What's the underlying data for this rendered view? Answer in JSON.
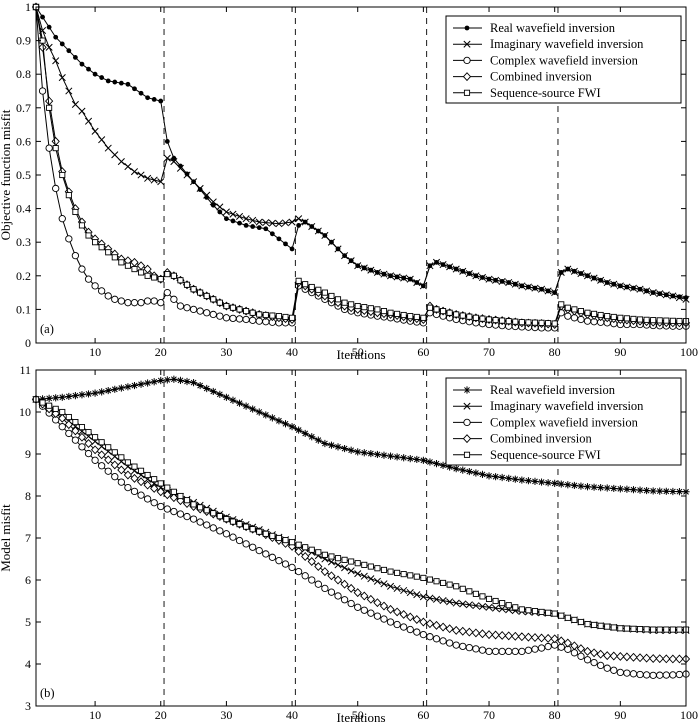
{
  "chart_data": [
    {
      "type": "line",
      "panel_label": "(a)",
      "xlabel": "Iterations",
      "ylabel": "Objective function misfit",
      "xlim": [
        1,
        100
      ],
      "ylim": [
        0,
        1
      ],
      "xticks": [
        10,
        20,
        30,
        40,
        50,
        60,
        70,
        80,
        90,
        100
      ],
      "yticks": [
        0,
        0.1,
        0.2,
        0.3,
        0.4,
        0.5,
        0.6,
        0.7,
        0.8,
        0.9,
        1
      ],
      "vlines": [
        20.5,
        40.5,
        60.5,
        80.5
      ],
      "legend_position": "top-right",
      "series": [
        {
          "name": "Real wavefield inversion",
          "marker": "dot",
          "x": [
            1,
            2,
            3,
            4,
            5,
            6,
            8,
            10,
            12,
            15,
            18,
            20,
            21,
            22,
            25,
            28,
            30,
            33,
            36,
            38,
            40,
            41,
            42,
            45,
            48,
            50,
            53,
            55,
            58,
            60,
            61,
            62,
            65,
            68,
            70,
            73,
            75,
            78,
            80,
            81,
            82,
            85,
            88,
            90,
            93,
            95,
            98,
            100
          ],
          "y": [
            1.0,
            0.97,
            0.94,
            0.91,
            0.89,
            0.87,
            0.83,
            0.8,
            0.78,
            0.77,
            0.73,
            0.72,
            0.6,
            0.55,
            0.48,
            0.41,
            0.37,
            0.35,
            0.34,
            0.31,
            0.28,
            0.35,
            0.36,
            0.32,
            0.26,
            0.23,
            0.21,
            0.2,
            0.19,
            0.17,
            0.23,
            0.24,
            0.22,
            0.2,
            0.19,
            0.18,
            0.17,
            0.16,
            0.15,
            0.21,
            0.22,
            0.2,
            0.18,
            0.17,
            0.16,
            0.15,
            0.14,
            0.135
          ]
        },
        {
          "name": "Imaginary wavefield inversion",
          "marker": "x",
          "x": [
            1,
            2,
            3,
            4,
            5,
            6,
            7,
            8,
            9,
            10,
            12,
            14,
            16,
            18,
            19,
            20,
            21,
            22,
            25,
            28,
            30,
            33,
            35,
            38,
            40,
            41,
            42,
            45,
            48,
            50,
            53,
            55,
            58,
            60,
            61,
            62,
            65,
            68,
            70,
            73,
            75,
            78,
            80,
            81,
            82,
            85,
            88,
            90,
            93,
            95,
            98,
            100
          ],
          "y": [
            1.0,
            0.93,
            0.88,
            0.84,
            0.79,
            0.75,
            0.71,
            0.69,
            0.66,
            0.63,
            0.58,
            0.54,
            0.51,
            0.49,
            0.485,
            0.48,
            0.55,
            0.54,
            0.48,
            0.42,
            0.39,
            0.37,
            0.36,
            0.355,
            0.36,
            0.37,
            0.36,
            0.32,
            0.26,
            0.23,
            0.21,
            0.2,
            0.19,
            0.17,
            0.23,
            0.24,
            0.22,
            0.2,
            0.19,
            0.18,
            0.17,
            0.16,
            0.15,
            0.21,
            0.22,
            0.2,
            0.18,
            0.17,
            0.16,
            0.15,
            0.14,
            0.13
          ]
        },
        {
          "name": "Complex wavefield inversion",
          "marker": "circle",
          "x": [
            1,
            2,
            3,
            4,
            5,
            6,
            7,
            8,
            9,
            10,
            11,
            12,
            13,
            14,
            15,
            16,
            17,
            18,
            19,
            20,
            21,
            22,
            23,
            25,
            28,
            30,
            33,
            35,
            38,
            40,
            41,
            42,
            45,
            48,
            50,
            53,
            55,
            58,
            60,
            61,
            62,
            65,
            68,
            70,
            73,
            75,
            78,
            80,
            81,
            82,
            85,
            88,
            90,
            93,
            95,
            98,
            100
          ],
          "y": [
            1.0,
            0.75,
            0.58,
            0.46,
            0.37,
            0.31,
            0.26,
            0.22,
            0.19,
            0.17,
            0.155,
            0.14,
            0.13,
            0.125,
            0.12,
            0.12,
            0.12,
            0.125,
            0.125,
            0.12,
            0.15,
            0.13,
            0.11,
            0.1,
            0.085,
            0.075,
            0.07,
            0.065,
            0.06,
            0.06,
            0.17,
            0.16,
            0.13,
            0.1,
            0.09,
            0.08,
            0.075,
            0.065,
            0.06,
            0.09,
            0.085,
            0.07,
            0.06,
            0.055,
            0.05,
            0.048,
            0.045,
            0.045,
            0.09,
            0.08,
            0.065,
            0.06,
            0.055,
            0.055,
            0.052,
            0.05,
            0.05
          ]
        },
        {
          "name": "Combined inversion",
          "marker": "diamond",
          "x": [
            1,
            2,
            3,
            4,
            5,
            6,
            7,
            8,
            9,
            10,
            12,
            14,
            16,
            18,
            19,
            20,
            21,
            22,
            25,
            28,
            30,
            33,
            35,
            38,
            40,
            41,
            42,
            45,
            48,
            50,
            53,
            55,
            58,
            60,
            61,
            62,
            65,
            68,
            70,
            73,
            75,
            78,
            80,
            81,
            82,
            85,
            88,
            90,
            93,
            95,
            98,
            100
          ],
          "y": [
            1.0,
            0.88,
            0.72,
            0.6,
            0.51,
            0.45,
            0.4,
            0.36,
            0.33,
            0.31,
            0.28,
            0.25,
            0.24,
            0.22,
            0.2,
            0.19,
            0.21,
            0.2,
            0.16,
            0.13,
            0.11,
            0.095,
            0.085,
            0.075,
            0.07,
            0.18,
            0.17,
            0.14,
            0.11,
            0.1,
            0.09,
            0.085,
            0.075,
            0.07,
            0.11,
            0.1,
            0.085,
            0.075,
            0.07,
            0.065,
            0.06,
            0.058,
            0.055,
            0.11,
            0.1,
            0.085,
            0.075,
            0.07,
            0.065,
            0.062,
            0.06,
            0.06
          ]
        },
        {
          "name": "Sequence-source FWI",
          "marker": "square",
          "x": [
            1,
            2,
            3,
            4,
            5,
            6,
            7,
            8,
            9,
            10,
            12,
            14,
            16,
            18,
            19,
            20,
            21,
            22,
            25,
            28,
            30,
            33,
            35,
            38,
            40,
            41,
            42,
            45,
            48,
            50,
            53,
            55,
            58,
            60,
            61,
            62,
            65,
            68,
            70,
            73,
            75,
            78,
            80,
            81,
            82,
            85,
            88,
            90,
            93,
            95,
            98,
            100
          ],
          "y": [
            1.0,
            0.9,
            0.7,
            0.58,
            0.5,
            0.44,
            0.39,
            0.35,
            0.32,
            0.3,
            0.27,
            0.24,
            0.22,
            0.2,
            0.195,
            0.19,
            0.205,
            0.2,
            0.16,
            0.13,
            0.11,
            0.095,
            0.085,
            0.08,
            0.075,
            0.185,
            0.175,
            0.15,
            0.12,
            0.11,
            0.1,
            0.09,
            0.08,
            0.075,
            0.105,
            0.1,
            0.085,
            0.075,
            0.07,
            0.065,
            0.062,
            0.06,
            0.058,
            0.115,
            0.105,
            0.09,
            0.08,
            0.075,
            0.07,
            0.068,
            0.066,
            0.065
          ]
        }
      ]
    },
    {
      "type": "line",
      "panel_label": "(b)",
      "xlabel": "Iterations",
      "ylabel": "Model misfit",
      "xlim": [
        1,
        100
      ],
      "ylim": [
        3,
        11
      ],
      "xticks": [
        10,
        20,
        30,
        40,
        50,
        60,
        70,
        80,
        90,
        100
      ],
      "yticks": [
        3,
        4,
        5,
        6,
        7,
        8,
        9,
        10,
        11
      ],
      "vlines": [
        20.5,
        40.5,
        60.5,
        80.5
      ],
      "legend_position": "top-right",
      "series": [
        {
          "name": "Real wavefield inversion",
          "marker": "star",
          "x": [
            1,
            5,
            10,
            15,
            20,
            22,
            25,
            30,
            35,
            40,
            45,
            50,
            55,
            60,
            65,
            70,
            75,
            80,
            85,
            90,
            95,
            100
          ],
          "y": [
            10.3,
            10.35,
            10.45,
            10.6,
            10.75,
            10.78,
            10.7,
            10.35,
            10.0,
            9.65,
            9.25,
            9.05,
            8.95,
            8.85,
            8.65,
            8.48,
            8.38,
            8.3,
            8.22,
            8.17,
            8.12,
            8.1
          ]
        },
        {
          "name": "Imaginary wavefield inversion",
          "marker": "x",
          "x": [
            1,
            5,
            10,
            15,
            20,
            25,
            30,
            35,
            40,
            45,
            50,
            55,
            60,
            65,
            70,
            75,
            80,
            85,
            90,
            95,
            100
          ],
          "y": [
            10.3,
            9.9,
            9.3,
            8.7,
            8.2,
            7.85,
            7.5,
            7.2,
            6.9,
            6.5,
            6.15,
            5.85,
            5.6,
            5.45,
            5.35,
            5.25,
            5.2,
            4.95,
            4.85,
            4.8,
            4.8
          ]
        },
        {
          "name": "Complex wavefield inversion",
          "marker": "circle",
          "x": [
            1,
            5,
            10,
            15,
            20,
            25,
            30,
            35,
            40,
            45,
            50,
            55,
            60,
            65,
            70,
            75,
            78,
            80,
            82,
            85,
            88,
            90,
            93,
            95,
            98,
            100
          ],
          "y": [
            10.3,
            9.65,
            8.85,
            8.2,
            7.75,
            7.45,
            7.1,
            6.7,
            6.3,
            5.8,
            5.35,
            5.0,
            4.7,
            4.45,
            4.3,
            4.3,
            4.38,
            4.45,
            4.35,
            4.1,
            3.9,
            3.8,
            3.75,
            3.73,
            3.74,
            3.76
          ]
        },
        {
          "name": "Combined inversion",
          "marker": "diamond",
          "x": [
            1,
            5,
            10,
            15,
            20,
            25,
            30,
            35,
            40,
            45,
            50,
            55,
            60,
            65,
            70,
            75,
            80,
            82,
            85,
            88,
            90,
            93,
            95,
            98,
            100
          ],
          "y": [
            10.3,
            9.85,
            9.1,
            8.5,
            8.1,
            7.75,
            7.45,
            7.15,
            6.8,
            6.2,
            5.7,
            5.3,
            5.0,
            4.8,
            4.7,
            4.65,
            4.6,
            4.5,
            4.3,
            4.2,
            4.18,
            4.15,
            4.13,
            4.12,
            4.12
          ]
        },
        {
          "name": "Sequence-source FWI",
          "marker": "square",
          "x": [
            1,
            5,
            10,
            15,
            20,
            25,
            30,
            35,
            40,
            45,
            50,
            55,
            60,
            65,
            70,
            75,
            80,
            85,
            90,
            95,
            100
          ],
          "y": [
            10.3,
            10.0,
            9.4,
            8.8,
            8.3,
            7.8,
            7.45,
            7.15,
            6.9,
            6.6,
            6.4,
            6.2,
            6.05,
            5.85,
            5.55,
            5.3,
            5.2,
            4.95,
            4.85,
            4.82,
            4.82
          ]
        }
      ]
    }
  ]
}
